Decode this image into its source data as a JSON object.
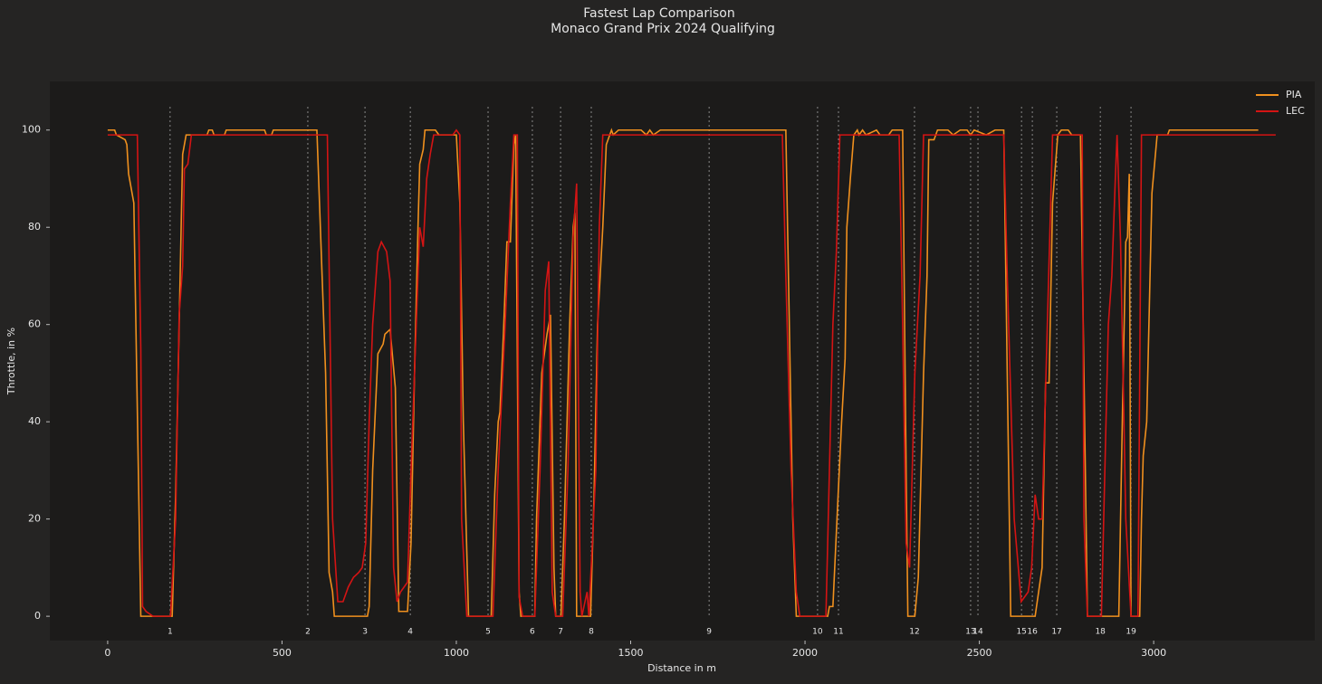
{
  "chart_data": {
    "type": "line",
    "title": "Fastest Lap Comparison",
    "subtitle": "Monaco Grand Prix 2024 Qualifying",
    "x_label": "Distance in m",
    "y_label": "Throttle, in %",
    "xlim": [
      -166,
      3462
    ],
    "ylim": [
      -5,
      110
    ],
    "xticks": [
      0,
      500,
      1000,
      1500,
      2000,
      2500,
      3000
    ],
    "yticks": [
      0,
      20,
      40,
      60,
      80,
      100
    ],
    "legend": "upper right",
    "grid": false,
    "corners": {
      "numbers": [
        1,
        2,
        3,
        4,
        5,
        6,
        7,
        8,
        9,
        10,
        11,
        12,
        13,
        14,
        15,
        16,
        17,
        18,
        19
      ],
      "distances": [
        179,
        574,
        738,
        868,
        1091,
        1218,
        1299,
        1387,
        1725,
        2036,
        2096,
        2314,
        2475,
        2496,
        2621,
        2652,
        2722,
        2847,
        2935
      ]
    },
    "series": [
      {
        "name": "PIA",
        "color": "#f0901e",
        "x": [
          0,
          20,
          25,
          50,
          55,
          60,
          75,
          95,
          185,
          195,
          205,
          215,
          225,
          285,
          290,
          300,
          305,
          335,
          340,
          450,
          455,
          470,
          475,
          600,
          615,
          625,
          635,
          645,
          650,
          745,
          750,
          760,
          775,
          790,
          795,
          810,
          825,
          835,
          860,
          870,
          880,
          890,
          895,
          905,
          910,
          940,
          950,
          1000,
          1010,
          1020,
          1035,
          1100,
          1110,
          1120,
          1125,
          1135,
          1145,
          1155,
          1165,
          1170,
          1180,
          1185,
          1225,
          1230,
          1245,
          1260,
          1270,
          1280,
          1285,
          1300,
          1310,
          1325,
          1335,
          1340,
          1345,
          1385,
          1395,
          1405,
          1420,
          1430,
          1440,
          1445,
          1450,
          1465,
          1530,
          1545,
          1555,
          1565,
          1585,
          1945,
          1955,
          1965,
          1975,
          2065,
          2070,
          2080,
          2095,
          2105,
          2115,
          2120,
          2130,
          2140,
          2150,
          2155,
          2165,
          2175,
          2205,
          2215,
          2240,
          2250,
          2280,
          2290,
          2295,
          2315,
          2325,
          2340,
          2350,
          2355,
          2370,
          2380,
          2410,
          2425,
          2445,
          2465,
          2475,
          2485,
          2520,
          2545,
          2570,
          2580,
          2590,
          2660,
          2680,
          2690,
          2700,
          2710,
          2725,
          2735,
          2755,
          2765,
          2790,
          2800,
          2810,
          2900,
          2910,
          2920,
          2925,
          2930,
          2935,
          2960,
          2965,
          2970,
          2980,
          2995,
          3010,
          3040,
          3045,
          3300
        ],
        "values": [
          100,
          100,
          99,
          98,
          97,
          91,
          85,
          0,
          0,
          25,
          60,
          95,
          99,
          99,
          100,
          100,
          99,
          99,
          100,
          100,
          99,
          99,
          100,
          100,
          70,
          50,
          9,
          5,
          0,
          0,
          2,
          30,
          54,
          56,
          58,
          59,
          47,
          1,
          1,
          15,
          50,
          80,
          93,
          96,
          100,
          100,
          99,
          99,
          85,
          40,
          0,
          0,
          25,
          40,
          42,
          58,
          77,
          77,
          97,
          99,
          5,
          0,
          0,
          20,
          50,
          58,
          62,
          10,
          0,
          0,
          20,
          60,
          80,
          83,
          0,
          0,
          25,
          60,
          80,
          97,
          99,
          100,
          99,
          100,
          100,
          99,
          100,
          99,
          100,
          100,
          60,
          20,
          0,
          0,
          2,
          2,
          25,
          40,
          53,
          80,
          90,
          99,
          100,
          99,
          100,
          99,
          100,
          99,
          99,
          100,
          100,
          30,
          0,
          0,
          8,
          50,
          70,
          98,
          98,
          100,
          100,
          99,
          100,
          100,
          99,
          100,
          99,
          100,
          100,
          50,
          0,
          0,
          10,
          48,
          48,
          85,
          99,
          100,
          100,
          99,
          99,
          50,
          0,
          0,
          40,
          77,
          78,
          91,
          0,
          0,
          20,
          33,
          40,
          87,
          99,
          99,
          100,
          100
        ]
      },
      {
        "name": "LEC",
        "color": "#d41414",
        "x": [
          0,
          85,
          95,
          100,
          110,
          130,
          180,
          195,
          205,
          215,
          220,
          230,
          240,
          630,
          645,
          660,
          675,
          690,
          705,
          720,
          730,
          740,
          750,
          760,
          775,
          785,
          800,
          810,
          820,
          830,
          840,
          860,
          870,
          890,
          895,
          905,
          915,
          925,
          935,
          990,
          1000,
          1010,
          1015,
          1030,
          1105,
          1120,
          1140,
          1155,
          1165,
          1175,
          1180,
          1190,
          1225,
          1240,
          1255,
          1265,
          1275,
          1285,
          1305,
          1320,
          1335,
          1345,
          1355,
          1360,
          1375,
          1380,
          1400,
          1410,
          1420,
          1935,
          1945,
          1960,
          1975,
          1985,
          2060,
          2070,
          2080,
          2090,
          2100,
          2270,
          2280,
          2290,
          2300,
          2315,
          2330,
          2340,
          2570,
          2580,
          2600,
          2620,
          2640,
          2650,
          2660,
          2670,
          2680,
          2695,
          2710,
          2795,
          2800,
          2810,
          2850,
          2860,
          2870,
          2880,
          2890,
          2895,
          2905,
          2920,
          2935,
          2955,
          2965,
          3350
        ],
        "values": [
          99,
          99,
          55,
          2,
          1,
          0,
          0,
          20,
          62,
          72,
          92,
          93,
          99,
          99,
          20,
          3,
          3,
          6,
          8,
          9,
          10,
          15,
          40,
          60,
          75,
          77,
          75,
          69,
          10,
          3,
          5,
          7,
          30,
          70,
          80,
          76,
          90,
          95,
          99,
          99,
          100,
          99,
          20,
          0,
          0,
          30,
          60,
          85,
          99,
          99,
          4,
          0,
          0,
          30,
          67,
          73,
          5,
          0,
          0,
          30,
          78,
          89,
          5,
          0,
          5,
          0,
          30,
          80,
          99,
          99,
          70,
          30,
          5,
          0,
          0,
          30,
          60,
          75,
          99,
          99,
          60,
          15,
          10,
          50,
          70,
          99,
          99,
          70,
          20,
          3,
          5,
          10,
          25,
          20,
          20,
          60,
          99,
          99,
          20,
          0,
          0,
          30,
          60,
          70,
          90,
          99,
          77,
          20,
          0,
          0,
          99,
          99
        ]
      }
    ]
  }
}
